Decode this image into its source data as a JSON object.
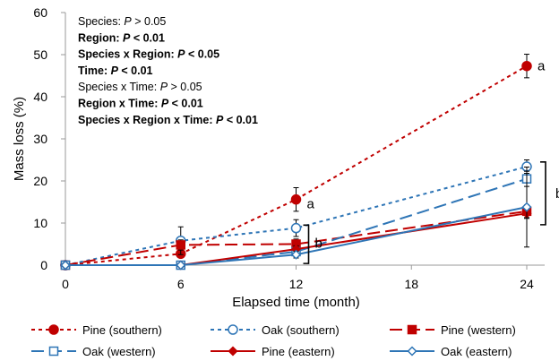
{
  "chart_data": {
    "type": "line",
    "xlabel": "Elapsed time (month)",
    "ylabel": "Mass loss (%)",
    "xlim": [
      0,
      24
    ],
    "ylim": [
      0,
      60
    ],
    "xticks": [
      0,
      6,
      12,
      18,
      24
    ],
    "yticks": [
      0,
      10,
      20,
      30,
      40,
      50,
      60
    ],
    "grid": false,
    "legend_placement": "bottom",
    "stats": [
      {
        "prefix": "Species: ",
        "p": "P",
        "rest": " > 0.05",
        "bold": false
      },
      {
        "prefix": "Region: ",
        "p": "P",
        "rest": " < 0.01",
        "bold": true
      },
      {
        "prefix": "Species x Region: ",
        "p": "P",
        "rest": " < 0.05",
        "bold": true
      },
      {
        "prefix": "Time: ",
        "p": "P",
        "rest": " < 0.01",
        "bold": true
      },
      {
        "prefix": "Species x Time: ",
        "p": "P",
        "rest": " > 0.05",
        "bold": false
      },
      {
        "prefix": "Region x Time: ",
        "p": "P",
        "rest": " < 0.01",
        "bold": true
      },
      {
        "prefix": "Species x Region x Time: ",
        "p": "P",
        "rest": " < 0.01",
        "bold": true
      }
    ],
    "annotations": {
      "a_top": "a",
      "a_mid": "a",
      "b": "b",
      "right_letter": "b"
    },
    "series": [
      {
        "name": "Pine (southern)",
        "color": "#c00000",
        "dash": "4,4",
        "marker": "circle-filled",
        "x": [
          0,
          6,
          12,
          24
        ],
        "y": [
          0,
          2.7,
          15.6,
          47.3
        ],
        "err": [
          0.3,
          0.8,
          2.8,
          2.8
        ]
      },
      {
        "name": "Oak (southern)",
        "color": "#2e75b6",
        "dash": "4,4",
        "marker": "circle-open",
        "x": [
          0,
          6,
          12,
          24
        ],
        "y": [
          0,
          5.8,
          8.8,
          23.4
        ],
        "err": [
          0.3,
          3.3,
          2.0,
          1.6
        ]
      },
      {
        "name": "Pine (western)",
        "color": "#c00000",
        "dash": "14,6",
        "marker": "square-filled",
        "x": [
          0,
          6,
          12,
          24
        ],
        "y": [
          0,
          4.8,
          5.0,
          12.8
        ],
        "err": [
          0.3,
          1.2,
          1.2,
          1.5
        ]
      },
      {
        "name": "Oak (western)",
        "color": "#2e75b6",
        "dash": "14,6",
        "marker": "square-open",
        "x": [
          0,
          6,
          12,
          24
        ],
        "y": [
          0,
          0,
          3.2,
          20.5
        ],
        "err": [
          0.3,
          0.3,
          1.2,
          1.8
        ]
      },
      {
        "name": "Pine (eastern)",
        "color": "#c00000",
        "dash": "",
        "marker": "diamond-filled",
        "x": [
          0,
          6,
          12,
          24
        ],
        "y": [
          0,
          0,
          3.8,
          12.3
        ],
        "err": [
          0.3,
          0.3,
          0.8,
          1.2
        ]
      },
      {
        "name": "Oak (eastern)",
        "color": "#2e75b6",
        "dash": "",
        "marker": "diamond-open",
        "x": [
          0,
          6,
          12,
          24
        ],
        "y": [
          0,
          0,
          2.5,
          13.8
        ],
        "err": [
          0.3,
          0.3,
          0.8,
          9.5
        ]
      }
    ]
  }
}
